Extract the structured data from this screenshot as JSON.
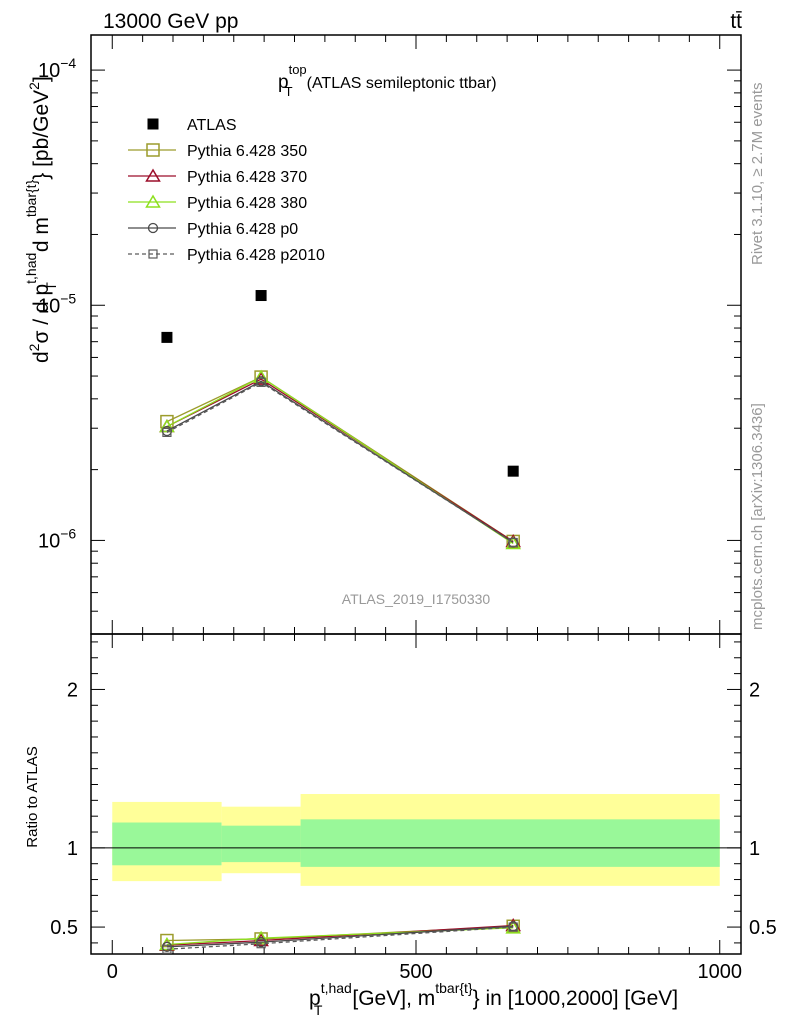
{
  "header": {
    "left": "13000 GeV pp",
    "right": "tt̄"
  },
  "side_labels": {
    "rivet": "Rivet 3.1.10, ≥ 2.7M events",
    "mcplots": "mcplots.cern.ch [arXiv:1306.3436]"
  },
  "chart_data": {
    "type": "line",
    "title": {
      "main": "p",
      "sup": "top",
      "sub": "T",
      "rest": "(ATLAS semileptonic ttbar)"
    },
    "analysis_id": "ATLAS_2019_I1750330",
    "x_label": {
      "p": "p",
      "sup1": "t,had",
      "sub1": "T",
      "mid": "[GeV], m",
      "sup2": "tbar{t}",
      "end": "} in [1000,2000] [GeV]"
    },
    "y_label": {
      "a": "d",
      "sup_a": "2",
      "b": "σ / d p",
      "sup_b": "t,had",
      "sub_b": "T",
      "c": "d m",
      "sup_c": "tbar{t}",
      "d": "} [pb/GeV",
      "sup_d": "2",
      "e": "]"
    },
    "ratio_ylabel": "Ratio to ATLAS",
    "xlim": [
      -35,
      1035
    ],
    "xscale": "linear",
    "ylim_main": [
      4e-07,
      0.000141
    ],
    "yscale_main": "log",
    "ylim_ratio": [
      0.33,
      2.35
    ],
    "x_ticks": [
      0,
      500,
      1000
    ],
    "x_tick_labels": [
      "0",
      "500",
      "1000"
    ],
    "y_ticks_main": [
      1e-06,
      1e-05,
      0.0001
    ],
    "y_tick_labels_main": [
      {
        "base": "10",
        "exp": "−6"
      },
      {
        "base": "10",
        "exp": "−5"
      },
      {
        "base": "10",
        "exp": "−4"
      }
    ],
    "y_ticks_ratio": [
      0.5,
      1,
      2
    ],
    "y_tick_labels_ratio": [
      "0.5",
      "1",
      "2"
    ],
    "x": [
      90,
      245,
      660
    ],
    "bins": [
      [
        0,
        180
      ],
      [
        180,
        310
      ],
      [
        310,
        1000
      ]
    ],
    "atlas": [
      7.3e-06,
      1.1e-05,
      1.97e-06
    ],
    "band_inner": [
      [
        0.89,
        1.16
      ],
      [
        0.91,
        1.14
      ],
      [
        0.88,
        1.18
      ]
    ],
    "band_outer": [
      [
        0.79,
        1.29
      ],
      [
        0.84,
        1.26
      ],
      [
        0.76,
        1.34
      ]
    ],
    "band_colors": {
      "inner": "#99f899",
      "outer": "#ffff99"
    },
    "legend_placement": "top-left",
    "series": [
      {
        "name": "ATLAS",
        "color": "#000000",
        "marker": "filled-square",
        "dash": ""
      },
      {
        "name": "Pythia 6.428 350",
        "color": "#9c9c2c",
        "marker": "open-square",
        "dash": "",
        "values": [
          3.2e-06,
          4.95e-06,
          9.9e-07
        ],
        "ratio": [
          0.415,
          0.425,
          0.505
        ]
      },
      {
        "name": "Pythia 6.428 370",
        "color": "#9c0e2a",
        "marker": "open-triangle",
        "dash": "",
        "values": [
          3.05e-06,
          4.85e-06,
          9.9e-07
        ],
        "ratio": [
          0.385,
          0.415,
          0.51
        ]
      },
      {
        "name": "Pythia 6.428 380",
        "color": "#8de01e",
        "marker": "open-triangle",
        "dash": "",
        "values": [
          3.05e-06,
          4.95e-06,
          9.7e-07
        ],
        "ratio": [
          0.39,
          0.43,
          0.495
        ]
      },
      {
        "name": "Pythia 6.428 p0",
        "color": "#4a4a4a",
        "marker": "open-circle",
        "dash": "",
        "values": [
          2.92e-06,
          4.75e-06,
          9.8e-07
        ],
        "ratio": [
          0.375,
          0.405,
          0.505
        ]
      },
      {
        "name": "Pythia 6.428 p2010",
        "color": "#5a5a5a",
        "marker": "open-small-square",
        "dash": "4,3",
        "values": [
          2.88e-06,
          4.7e-06,
          9.8e-07
        ],
        "ratio": [
          0.36,
          0.395,
          0.5
        ]
      }
    ]
  }
}
